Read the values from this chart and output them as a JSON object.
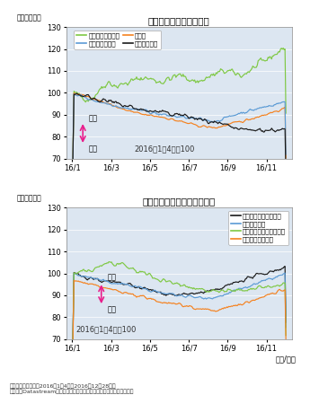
{
  "title1": "主な新興国の対円レート",
  "title2": "主なアジア各国の対円レート",
  "ylabel": "（ポイント）",
  "xlabel": "（年/月）",
  "ylim": [
    70,
    130
  ],
  "yticks": [
    70,
    80,
    90,
    100,
    110,
    120,
    130
  ],
  "xtick_labels": [
    "16/1",
    "16/3",
    "16/5",
    "16/7",
    "16/9",
    "16/11"
  ],
  "note1": "2016年1月4日＝100",
  "note2": "（注）データ期間は2016年1月4日～2016年12月28日。",
  "note3": "（出所）Datastreamのデータを基に三井住友アセットマネジメント作成",
  "arrow_text_top": "円安",
  "arrow_text_bottom": "円高",
  "legend1": [
    "ブラジル・レアル",
    "人民元",
    "インド・ルピー",
    "トルコ・リラ"
  ],
  "legend2": [
    "インドネシア・ルピア",
    "タイ・バーツ",
    "マレーシア・リンギット",
    "フィリピン・ペソ"
  ],
  "colors1": [
    "#7ec843",
    "#f5821f",
    "#5b9bd5",
    "#1a1a1a"
  ],
  "colors2": [
    "#1a1a1a",
    "#5b9bd5",
    "#7ec843",
    "#f5821f"
  ],
  "background_color": "#dce6f1"
}
